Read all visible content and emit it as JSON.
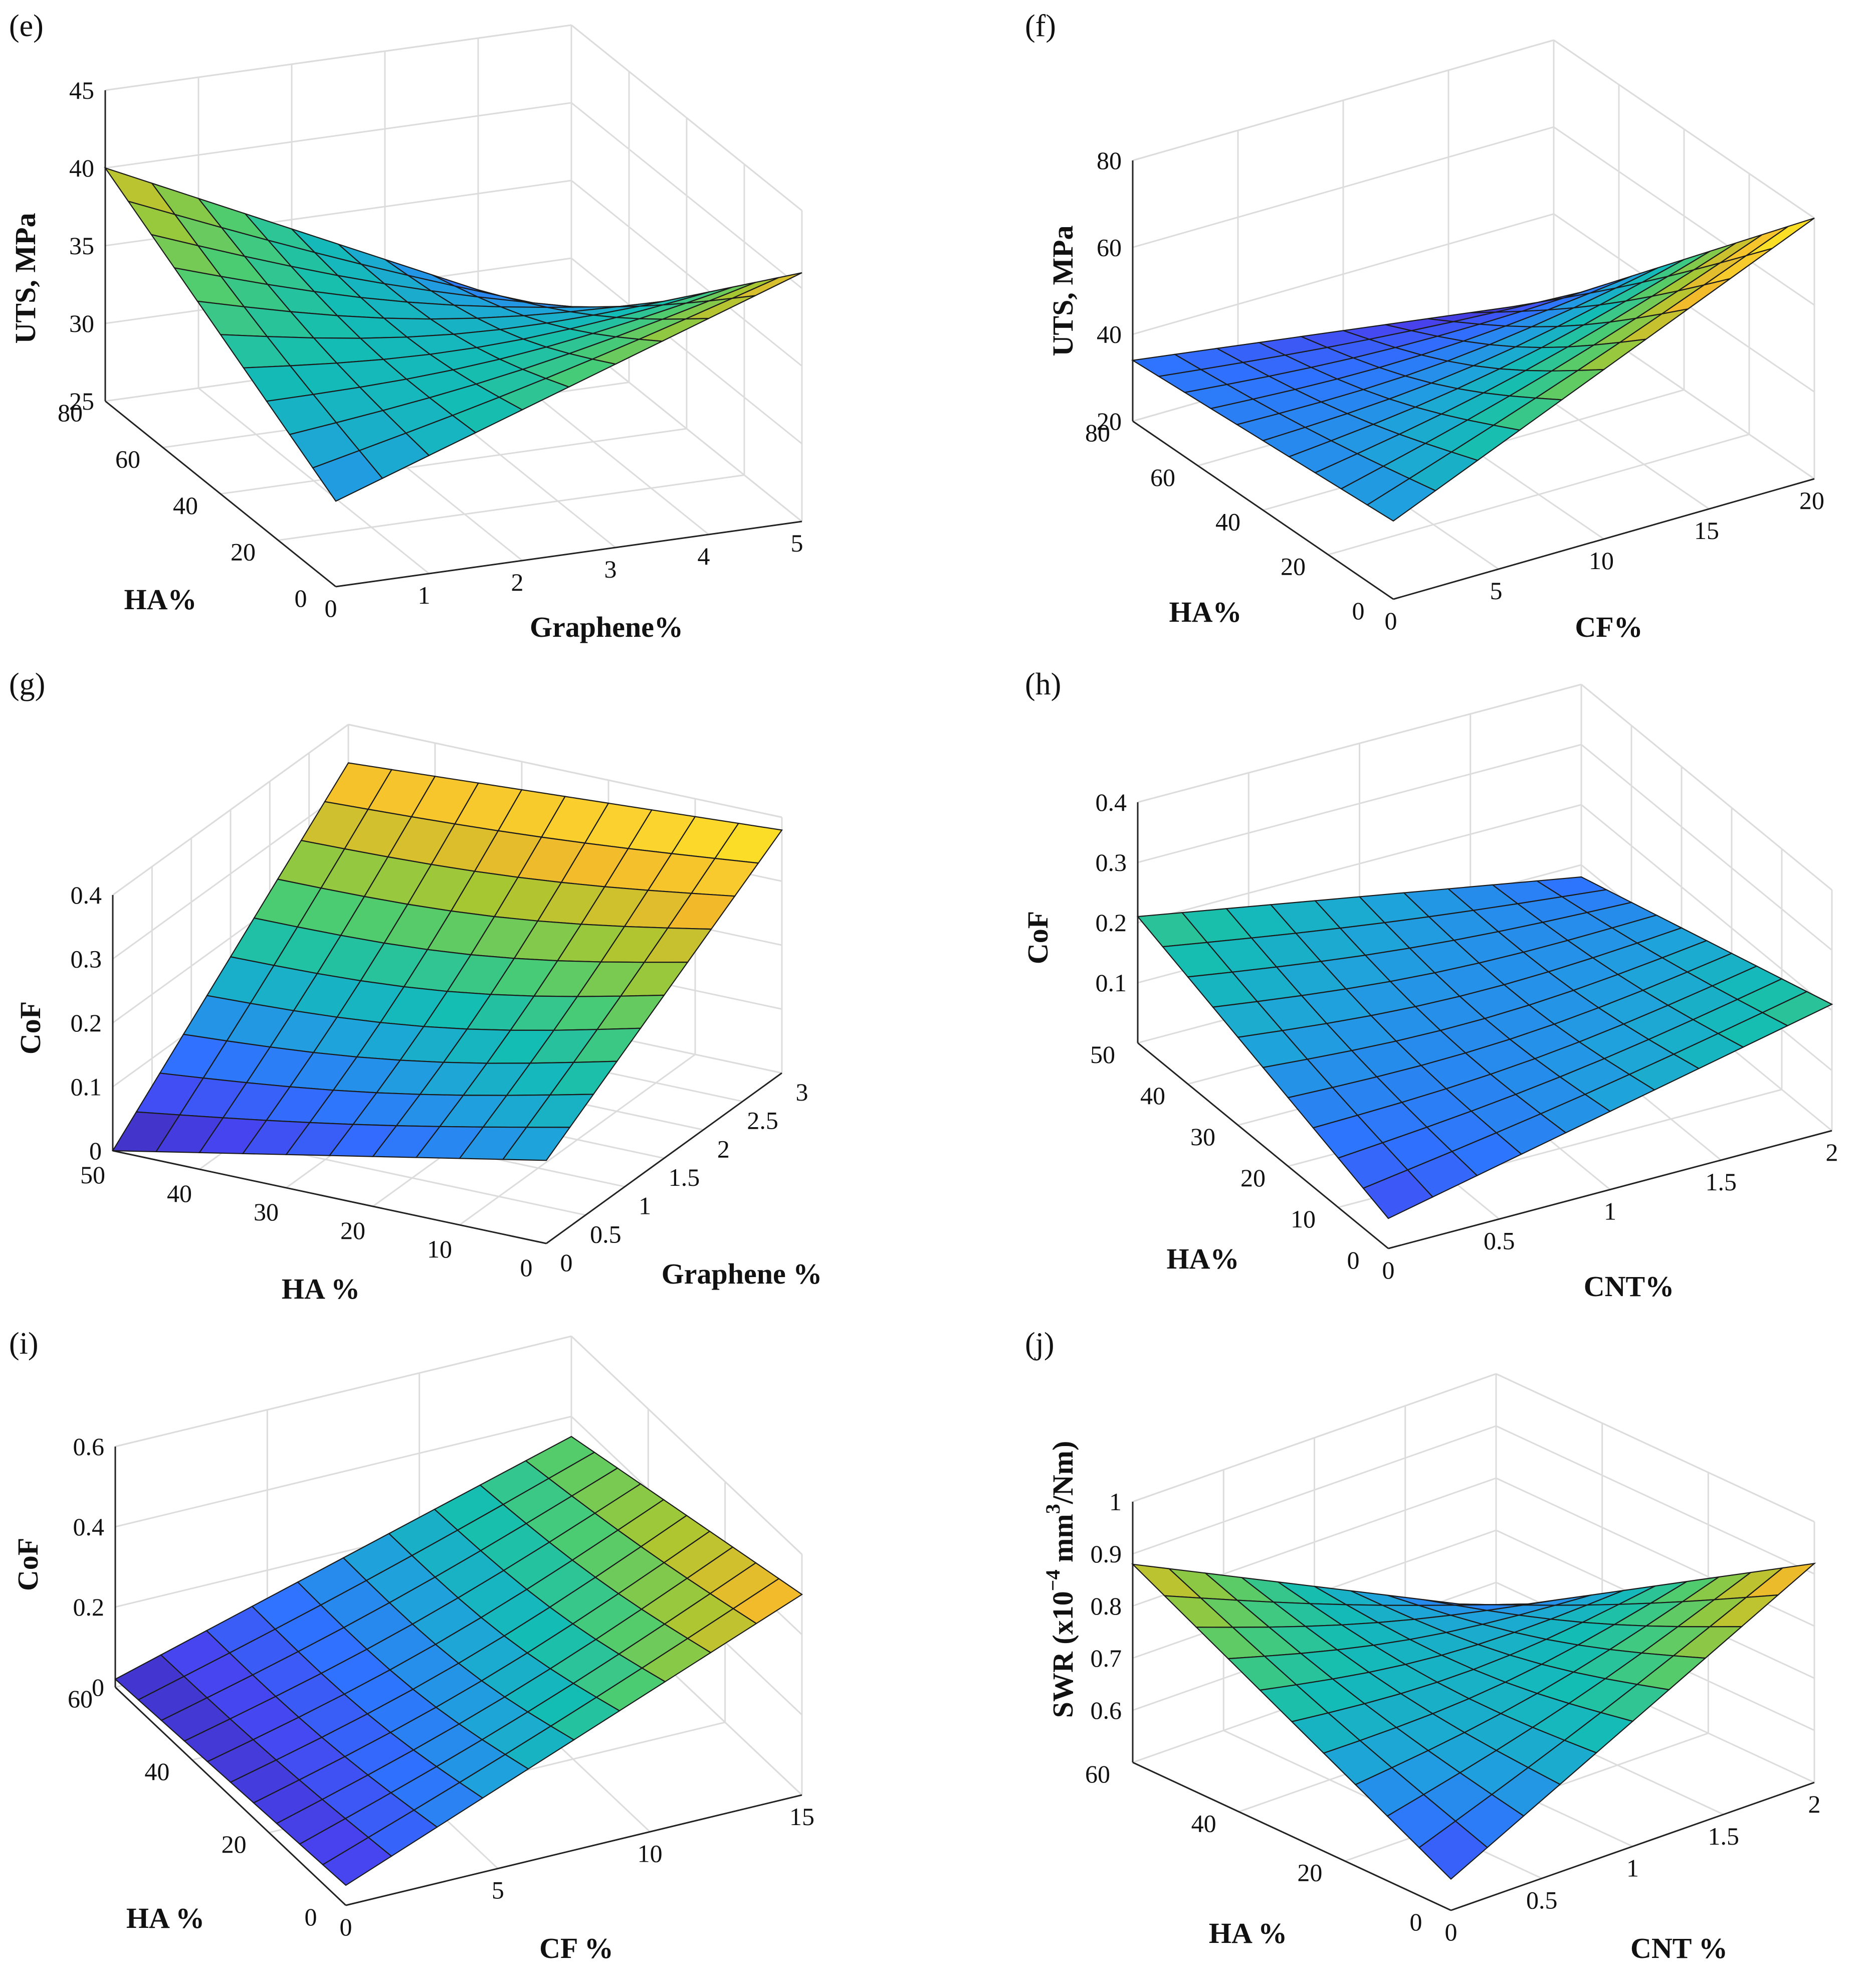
{
  "figure": {
    "colors": {
      "grid": "#dcdcdc",
      "axis": "#222222",
      "mesh": "#1a1a1a",
      "colormap": [
        "#3e26a8",
        "#4743ef",
        "#2f72ff",
        "#1fa2dc",
        "#13bdb4",
        "#4ccc72",
        "#a7c732",
        "#f2ba2b",
        "#fcd52e",
        "#f9fb0e"
      ]
    }
  },
  "chart_data": [
    {
      "panel": "(e)",
      "type": "surface",
      "x_label": "Graphene%",
      "y_label": "HA%",
      "z_label": "UTS, MPa",
      "x_range": [
        0,
        5
      ],
      "y_range": [
        0,
        80
      ],
      "z_range": [
        25,
        45
      ],
      "x_ticks": [
        "0",
        "1",
        "2",
        "3",
        "4",
        "5"
      ],
      "y_ticks": [
        "0",
        "20",
        "40",
        "60",
        "80"
      ],
      "z_ticks": [
        "25",
        "30",
        "35",
        "40",
        "45"
      ],
      "z_corners": {
        "x0_y0": 30.5,
        "x5_y0": 41,
        "x5_y80": 26,
        "x0_y80": 40
      }
    },
    {
      "panel": "(f)",
      "type": "surface",
      "x_label": "CF%",
      "y_label": "HA%",
      "z_label": "UTS, MPa",
      "x_range": [
        0,
        20
      ],
      "y_range": [
        0,
        80
      ],
      "z_range": [
        20,
        80
      ],
      "x_ticks": [
        "0",
        "5",
        "10",
        "15",
        "20"
      ],
      "y_ticks": [
        "0",
        "20",
        "40",
        "60",
        "80"
      ],
      "z_ticks": [
        "20",
        "40",
        "60",
        "80"
      ],
      "z_corners": {
        "x0_y0": 38,
        "x20_y0": 80,
        "x20_y80": 20,
        "x0_y80": 34
      }
    },
    {
      "panel": "(g)",
      "type": "surface",
      "x_label": "Graphene %",
      "y_label": "HA %",
      "z_label": "CoF",
      "x_range": [
        0,
        3
      ],
      "y_range": [
        0,
        50
      ],
      "z_range": [
        0,
        0.4
      ],
      "x_ticks": [
        "0",
        "0.5",
        "1",
        "1.5",
        "2",
        "2.5",
        "3"
      ],
      "y_ticks": [
        "0",
        "10",
        "20",
        "30",
        "40",
        "50"
      ],
      "z_ticks": [
        "0",
        "0.1",
        "0.2",
        "0.3",
        "0.4"
      ],
      "z_corners": {
        "x0_y0": 0.13,
        "x3_y0": 0.38,
        "x3_y50": 0.34,
        "x0_y50": 0.0
      }
    },
    {
      "panel": "(h)",
      "type": "surface",
      "x_label": "CNT%",
      "y_label": "HA%",
      "z_label": "CoF",
      "x_range": [
        0,
        2
      ],
      "y_range": [
        0,
        50
      ],
      "z_range": [
        0,
        0.4
      ],
      "x_ticks": [
        "0",
        "0.5",
        "1",
        "1.5",
        "2"
      ],
      "y_ticks": [
        "0",
        "10",
        "20",
        "30",
        "40",
        "50"
      ],
      "z_ticks": [
        "0.1",
        "0.2",
        "0.3",
        "0.4"
      ],
      "z_corners": {
        "x0_y0": 0.05,
        "x2_y0": 0.21,
        "x2_y50": 0.08,
        "x0_y50": 0.21
      }
    },
    {
      "panel": "(i)",
      "type": "surface",
      "x_label": "CF %",
      "y_label": "HA %",
      "z_label": "CoF",
      "x_range": [
        0,
        15
      ],
      "y_range": [
        0,
        60
      ],
      "z_range": [
        0,
        0.6
      ],
      "x_ticks": [
        "0",
        "5",
        "10",
        "15"
      ],
      "y_ticks": [
        "0",
        "20",
        "40",
        "60"
      ],
      "z_ticks": [
        "0",
        "0.2",
        "0.4",
        "0.6"
      ],
      "z_corners": {
        "x0_y0": 0.05,
        "x15_y0": 0.5,
        "x15_y60": 0.35,
        "x0_y60": 0.02
      }
    },
    {
      "panel": "(j)",
      "type": "surface",
      "x_label": "CNT %",
      "y_label": "HA %",
      "z_label": "SWR (x10",
      "z_label_exp": "−4",
      "z_label_mid": " mm",
      "z_label_exp2": "3",
      "z_label_end": "/Nm)",
      "x_range": [
        0,
        2
      ],
      "y_range": [
        0,
        60
      ],
      "z_range": [
        0.5,
        1
      ],
      "x_ticks": [
        "0",
        "0.5",
        "1",
        "1.5",
        "2"
      ],
      "y_ticks": [
        "0",
        "20",
        "40",
        "60"
      ],
      "z_ticks": [
        "0.6",
        "0.7",
        "0.8",
        "0.9",
        "1"
      ],
      "z_corners": {
        "x0_y0": 0.56,
        "x2_y0": 0.92,
        "x2_y60": 0.55,
        "x0_y60": 0.88
      }
    }
  ]
}
